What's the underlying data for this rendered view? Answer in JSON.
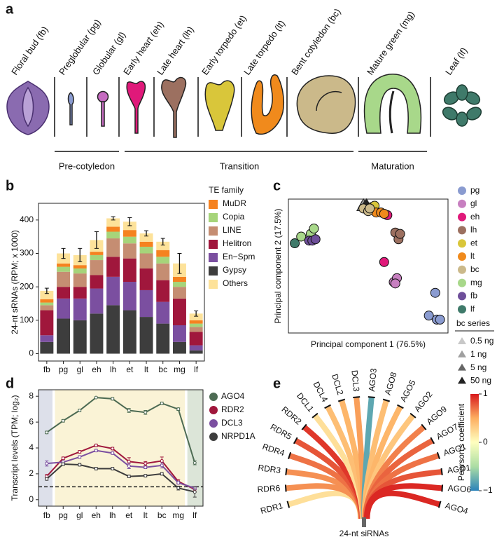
{
  "panel_labels": [
    "a",
    "b",
    "c",
    "d",
    "e"
  ],
  "diagram": {
    "stages": [
      "Floral bud (fb)",
      "Preglobular (pg)",
      "Globular (gl)",
      "Early heart (eh)",
      "Late heart (lh)",
      "Early torpedo (et)",
      "Late torpedo (lt)",
      "Bent cotyledon (bc)",
      "Mature green (mg)",
      "Leaf (lf)"
    ],
    "groups": [
      "Pre-cotyledon",
      "Transition",
      "Maturation"
    ]
  },
  "chart_data": [
    {
      "type": "stacked_bar",
      "ylabel": "24-nt sRNAs (RPM; x 1000)",
      "legend_title": "TE family",
      "categories": [
        "fb",
        "pg",
        "gl",
        "eh",
        "lh",
        "et",
        "lt",
        "bc",
        "mg",
        "lf"
      ],
      "series": [
        {
          "name": "MuDR",
          "color": "#f58220",
          "values": [
            10,
            10,
            10,
            10,
            15,
            20,
            15,
            20,
            15,
            10
          ]
        },
        {
          "name": "Copia",
          "color": "#a6d47a",
          "values": [
            8,
            15,
            15,
            15,
            20,
            20,
            20,
            20,
            15,
            10
          ]
        },
        {
          "name": "LINE",
          "color": "#c58d72",
          "values": [
            15,
            45,
            40,
            45,
            55,
            45,
            45,
            50,
            35,
            15
          ]
        },
        {
          "name": "Helitron",
          "color": "#a0173c",
          "values": [
            75,
            35,
            35,
            40,
            60,
            70,
            65,
            65,
            80,
            40
          ]
        },
        {
          "name": "En−Spm",
          "color": "#7b4fa0",
          "values": [
            20,
            60,
            65,
            75,
            85,
            85,
            80,
            65,
            50,
            15
          ]
        },
        {
          "name": "Gypsy",
          "color": "#3d3d3d",
          "values": [
            35,
            105,
            100,
            120,
            145,
            130,
            110,
            90,
            35,
            10
          ]
        },
        {
          "name": "Others",
          "color": "#fde29a",
          "values": [
            25,
            30,
            30,
            35,
            25,
            25,
            25,
            25,
            40,
            20
          ]
        }
      ],
      "errors": [
        8,
        15,
        20,
        25,
        5,
        12,
        8,
        10,
        30,
        8
      ],
      "ylim": [
        -22,
        450
      ],
      "yticks": [
        0,
        100,
        200,
        300,
        400
      ]
    },
    {
      "type": "scatter",
      "xlabel": "Principal component 1 (76.5%)",
      "ylabel": "Principal component 2  (17.5%)",
      "xlim": [
        0,
        100
      ],
      "ylim": [
        0,
        100
      ],
      "series": [
        {
          "name": "pg",
          "color": "#8a9bd0",
          "x": [
            88,
            93,
            95,
            92
          ],
          "y": [
            13,
            10,
            10,
            30
          ]
        },
        {
          "name": "gl",
          "color": "#c77fc0",
          "x": [
            66,
            68,
            67
          ],
          "y": [
            38,
            41,
            37
          ]
        },
        {
          "name": "eh",
          "color": "#e0197a",
          "x": [
            62,
            60
          ],
          "y": [
            88,
            53
          ]
        },
        {
          "name": "lh",
          "color": "#9c7060",
          "x": [
            67,
            69,
            70
          ],
          "y": [
            75,
            70,
            74
          ]
        },
        {
          "name": "et",
          "color": "#d9c63a",
          "x": [
            52,
            54
          ],
          "y": [
            94,
            95
          ]
        },
        {
          "name": "lt",
          "color": "#f08a1c",
          "x": [
            55,
            58,
            60
          ],
          "y": [
            90,
            90,
            89
          ]
        },
        {
          "name": "bc",
          "color": "#cbb98a",
          "x": [
            47,
            50,
            51
          ],
          "y": [
            93,
            91,
            93
          ]
        },
        {
          "name": "mg",
          "color": "#a8d88a",
          "x": [
            8,
            14,
            16
          ],
          "y": [
            72,
            74,
            78
          ]
        },
        {
          "name": "fb",
          "color": "#6e4f9a",
          "x": [
            13,
            15,
            17
          ],
          "y": [
            69,
            69,
            70
          ]
        },
        {
          "name": "lf",
          "color": "#3f7a6a",
          "x": [
            4
          ],
          "y": [
            67
          ]
        }
      ],
      "triangle_legend_title": "bc series",
      "triangle_series": [
        {
          "name": "0.5 ng",
          "color": "#c8c8c8",
          "x": [
            46
          ],
          "y": [
            94
          ]
        },
        {
          "name": "1 ng",
          "color": "#a0a0a0",
          "x": [
            47
          ],
          "y": [
            96
          ]
        },
        {
          "name": "5 ng",
          "color": "#666666",
          "x": [
            48
          ],
          "y": [
            95
          ]
        },
        {
          "name": "50 ng",
          "color": "#222222",
          "x": [
            49
          ],
          "y": [
            96
          ]
        }
      ]
    },
    {
      "type": "line",
      "ylabel": "Transcript levels (TPM; log₂)",
      "categories": [
        "fb",
        "pg",
        "gl",
        "eh",
        "lh",
        "et",
        "lt",
        "bc",
        "mg",
        "lf"
      ],
      "ylim": [
        -0.5,
        8.5
      ],
      "yticks": [
        0,
        2,
        4,
        6,
        8
      ],
      "hline": 1,
      "background_colors": [
        "#dde0ea",
        "#faf3d6",
        "#dce5d8"
      ],
      "series": [
        {
          "name": "AGO4",
          "color": "#4d6b53",
          "values": [
            5.2,
            6.1,
            6.9,
            7.9,
            7.8,
            6.9,
            6.75,
            7.45,
            7.0,
            2.85
          ],
          "errors": [
            0.1,
            0.1,
            0.1,
            0.05,
            0.1,
            0.15,
            0.15,
            0.1,
            0.1,
            0.15
          ]
        },
        {
          "name": "RDR2",
          "color": "#a0173c",
          "values": [
            1.8,
            3.2,
            3.7,
            4.2,
            3.95,
            2.95,
            2.8,
            3.0,
            1.4,
            0.8
          ],
          "errors": [
            0.15,
            0.1,
            0.1,
            0.1,
            0.1,
            0.3,
            0.15,
            0.3,
            0.15,
            0.2
          ]
        },
        {
          "name": "DCL3",
          "color": "#7b4fa0",
          "values": [
            2.8,
            2.9,
            3.3,
            3.8,
            3.6,
            2.6,
            2.5,
            2.65,
            1.3,
            0.9
          ],
          "errors": [
            0.2,
            0.1,
            0.1,
            0.1,
            0.1,
            0.2,
            0.1,
            0.2,
            0.1,
            0.1
          ]
        },
        {
          "name": "NRPD1A",
          "color": "#3d3d3d",
          "values": [
            1.6,
            2.75,
            2.7,
            2.4,
            2.4,
            1.8,
            1.85,
            2.0,
            0.9,
            0.6
          ],
          "errors": [
            0.1,
            0.1,
            0.1,
            0.1,
            0.1,
            0.1,
            0.1,
            0.1,
            0.15,
            0.4
          ]
        }
      ]
    },
    {
      "type": "fan",
      "center_label": "24-nt siRNAs",
      "colorbar_label": "Pearson's coefficient",
      "categories": [
        "RDR1",
        "RDR6",
        "RDR3",
        "RDR4",
        "RDR5",
        "RDR2",
        "DCL1",
        "DCL4",
        "DCL2",
        "DCL3",
        "AGO3",
        "AGO8",
        "AGO5",
        "AGO2",
        "AGO9",
        "AGO7",
        "AGO1",
        "AGO10",
        "AGO6",
        "AGO4"
      ],
      "values": [
        0.2,
        0.6,
        0.6,
        0.7,
        0.8,
        0.9,
        0.2,
        0.4,
        0.45,
        0.55,
        -0.8,
        0.4,
        0.45,
        0.35,
        0.65,
        0.75,
        0.7,
        0.8,
        0.95,
        0.95
      ],
      "clim": [
        -1,
        1
      ],
      "cticks": [
        1,
        0,
        {
          "value": -1,
          "label": "−1"
        }
      ],
      "colormap": [
        "#2b83ba",
        "#abdda4",
        "#ffffbf",
        "#fdae61",
        "#d7191c"
      ]
    }
  ]
}
